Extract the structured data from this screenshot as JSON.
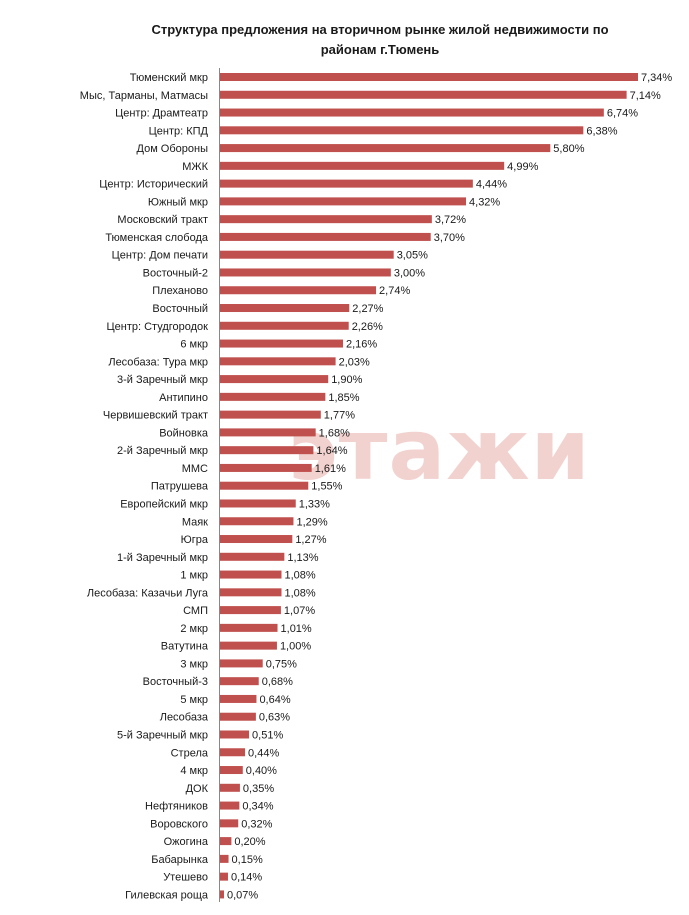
{
  "chart_data": {
    "type": "bar",
    "orientation": "horizontal",
    "title_line1": "Структура предложения на вторичном рынке жилой недвижимости по",
    "title_line2": "районам г.Тюмень",
    "watermark": "этажи",
    "bar_color": "#c0504d",
    "categories": [
      "Тюменский мкр",
      "Мыс, Тарманы, Матмасы",
      "Центр: Драмтеатр",
      "Центр: КПД",
      "Дом Обороны",
      "МЖК",
      "Центр: Исторический",
      "Южный мкр",
      "Московский тракт",
      "Тюменская слобода",
      "Центр: Дом печати",
      "Восточный-2",
      "Плеханово",
      "Восточный",
      "Центр: Студгородок",
      "6 мкр",
      "Лесобаза: Тура мкр",
      "3-й Заречный мкр",
      "Антипино",
      "Червишевский  тракт",
      "Войновка",
      "2-й Заречный мкр",
      "ММС",
      "Патрушева",
      "Европейский мкр",
      "Маяк",
      "Югра",
      "1-й Заречный мкр",
      "1 мкр",
      "Лесобаза: Казачьи Луга",
      "СМП",
      "2 мкр",
      "Ватутина",
      "3 мкр",
      "Восточный-3",
      "5 мкр",
      "Лесобаза",
      "5-й Заречный мкр",
      "Стрела",
      "4 мкр",
      "ДОК",
      "Нефтяников",
      "Воровского",
      "Ожогина",
      "Бабарынка",
      "Утешево",
      "Гилевская роща"
    ],
    "values": [
      7.34,
      7.14,
      6.74,
      6.38,
      5.8,
      4.99,
      4.44,
      4.32,
      3.72,
      3.7,
      3.05,
      3.0,
      2.74,
      2.27,
      2.26,
      2.16,
      2.03,
      1.9,
      1.85,
      1.77,
      1.68,
      1.64,
      1.61,
      1.55,
      1.33,
      1.29,
      1.27,
      1.13,
      1.08,
      1.08,
      1.07,
      1.01,
      1.0,
      0.75,
      0.68,
      0.64,
      0.63,
      0.51,
      0.44,
      0.4,
      0.35,
      0.34,
      0.32,
      0.2,
      0.15,
      0.14,
      0.07
    ],
    "value_labels": [
      "7,34%",
      "7,14%",
      "6,74%",
      "6,38%",
      "5,80%",
      "4,99%",
      "4,44%",
      "4,32%",
      "3,72%",
      "3,70%",
      "3,05%",
      "3,00%",
      "2,74%",
      "2,27%",
      "2,26%",
      "2,16%",
      "2,03%",
      "1,90%",
      "1,85%",
      "1,77%",
      "1,68%",
      "1,64%",
      "1,61%",
      "1,55%",
      "1,33%",
      "1,29%",
      "1,27%",
      "1,13%",
      "1,08%",
      "1,08%",
      "1,07%",
      "1,01%",
      "1,00%",
      "0,75%",
      "0,68%",
      "0,64%",
      "0,63%",
      "0,51%",
      "0,44%",
      "0,40%",
      "0,35%",
      "0,34%",
      "0,32%",
      "0,20%",
      "0,15%",
      "0,14%",
      "0,07%"
    ],
    "xlim": [
      0,
      7.34
    ],
    "grid": false,
    "legend": "none"
  }
}
